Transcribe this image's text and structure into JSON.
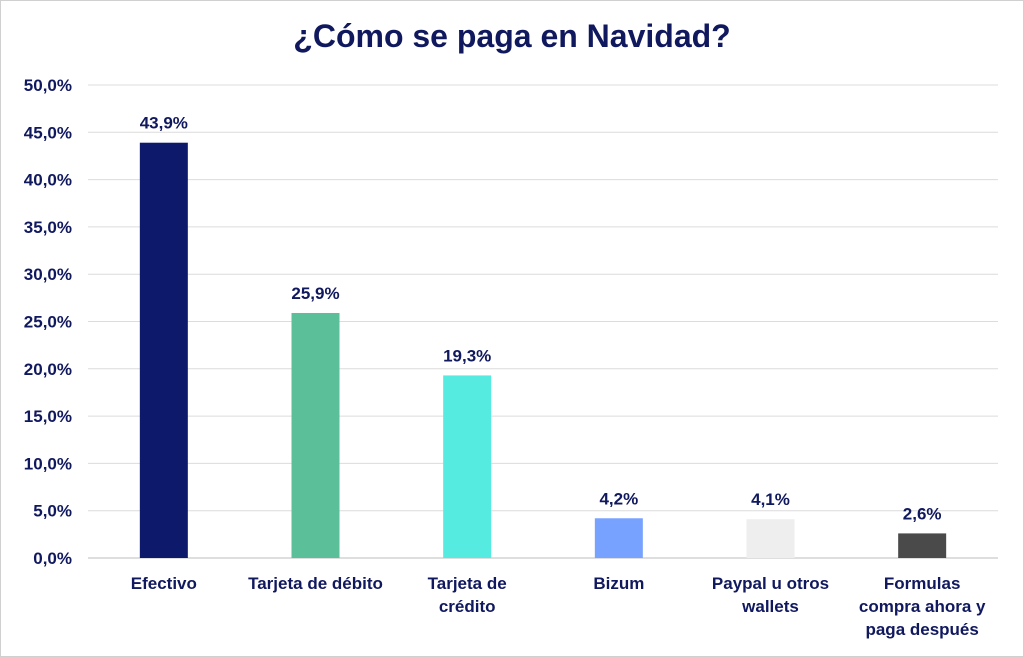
{
  "chart_data": {
    "type": "bar",
    "title": "¿Cómo se paga en Navidad?",
    "categories": [
      "Efectivo",
      "Tarjeta de débito",
      "Tarjeta de crédito",
      "Bizum",
      "Paypal u otros wallets",
      "Formulas compra ahora y paga después"
    ],
    "category_lines": [
      [
        "Efectivo"
      ],
      [
        "Tarjeta de débito"
      ],
      [
        "Tarjeta de",
        "crédito"
      ],
      [
        "Bizum"
      ],
      [
        "Paypal u otros",
        "wallets"
      ],
      [
        "Formulas",
        "compra ahora y",
        "paga después"
      ]
    ],
    "values": [
      43.9,
      25.9,
      19.3,
      4.2,
      4.1,
      2.6
    ],
    "value_labels": [
      "43,9%",
      "25,9%",
      "19,3%",
      "4,2%",
      "4,1%",
      "2,6%"
    ],
    "colors": [
      "#0d1a6b",
      "#5bbf9a",
      "#55ebe0",
      "#78a2ff",
      "#eeeeee",
      "#4a4a4a"
    ],
    "ylim": [
      0,
      50
    ],
    "yticks": [
      0,
      5,
      10,
      15,
      20,
      25,
      30,
      35,
      40,
      45,
      50
    ],
    "ytick_labels": [
      "0,0%",
      "5,0%",
      "10,0%",
      "15,0%",
      "20,0%",
      "25,0%",
      "30,0%",
      "35,0%",
      "40,0%",
      "45,0%",
      "50,0%"
    ],
    "grid": true,
    "legend": "none"
  }
}
